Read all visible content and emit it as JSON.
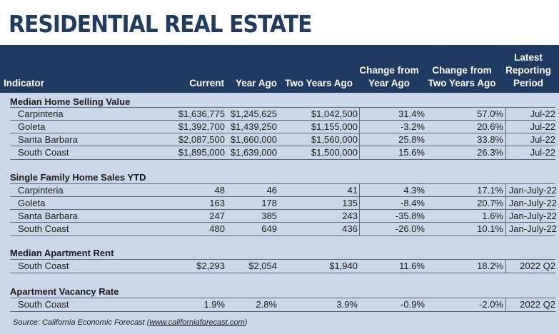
{
  "title": "RESIDENTIAL REAL ESTATE",
  "headers": {
    "indicator": "Indicator",
    "current": "Current",
    "year_ago": "Year Ago",
    "two_years_ago": "Two Years Ago",
    "change_year_1": "Change from",
    "change_year_2": "Year Ago",
    "change_two_1": "Change from",
    "change_two_2": "Two Years Ago",
    "period_1": "Latest",
    "period_2": "Reporting",
    "period_3": "Period"
  },
  "sections": [
    {
      "title": "Median Home Selling Value",
      "rows": [
        {
          "name": "Carpinteria",
          "current": "$1,636,775",
          "year_ago": "$1,245,625",
          "two_years_ago": "$1,042,500",
          "chg_year": "31.4%",
          "chg_two": "57.0%",
          "period": "Jul-22"
        },
        {
          "name": "Goleta",
          "current": "$1,392,700",
          "year_ago": "$1,439,250",
          "two_years_ago": "$1,155,000",
          "chg_year": "-3.2%",
          "chg_two": "20.6%",
          "period": "Jul-22"
        },
        {
          "name": "Santa Barbara",
          "current": "$2,087,500",
          "year_ago": "$1,660,000",
          "two_years_ago": "$1,560,000",
          "chg_year": "25.8%",
          "chg_two": "33.8%",
          "period": "Jul-22"
        },
        {
          "name": "South Coast",
          "current": "$1,895,000",
          "year_ago": "$1,639,000",
          "two_years_ago": "$1,500,000",
          "chg_year": "15.6%",
          "chg_two": "26.3%",
          "period": "Jul-22"
        }
      ]
    },
    {
      "title": "Single Family Home Sales YTD",
      "rows": [
        {
          "name": "Carpinteria",
          "current": "48",
          "year_ago": "46",
          "two_years_ago": "41",
          "chg_year": "4.3%",
          "chg_two": "17.1%",
          "period": "Jan-July-22"
        },
        {
          "name": "Goleta",
          "current": "163",
          "year_ago": "178",
          "two_years_ago": "135",
          "chg_year": "-8.4%",
          "chg_two": "20.7%",
          "period": "Jan-July-22"
        },
        {
          "name": "Santa Barbara",
          "current": "247",
          "year_ago": "385",
          "two_years_ago": "243",
          "chg_year": "-35.8%",
          "chg_two": "1.6%",
          "period": "Jan-July-22"
        },
        {
          "name": "South Coast",
          "current": "480",
          "year_ago": "649",
          "two_years_ago": "436",
          "chg_year": "-26.0%",
          "chg_two": "10.1%",
          "period": "Jan-July-22"
        }
      ]
    },
    {
      "title": "Median Apartment Rent",
      "rows": [
        {
          "name": "South Coast",
          "current": "$2,293",
          "year_ago": "$2,054",
          "two_years_ago": "$1,940",
          "chg_year": "11.6%",
          "chg_two": "18.2%",
          "period": "2022 Q2"
        }
      ]
    },
    {
      "title": "Apartment Vacancy Rate",
      "rows": [
        {
          "name": "South Coast",
          "current": "1.9%",
          "year_ago": "2.8%",
          "two_years_ago": "3.9%",
          "chg_year": "-0.9%",
          "chg_two": "-2.0%",
          "period": "2022 Q2"
        }
      ]
    }
  ],
  "source": {
    "prefix": "Source: California Economic Forecast (",
    "link": "www.californiaforecast.com",
    "suffix": ")"
  }
}
